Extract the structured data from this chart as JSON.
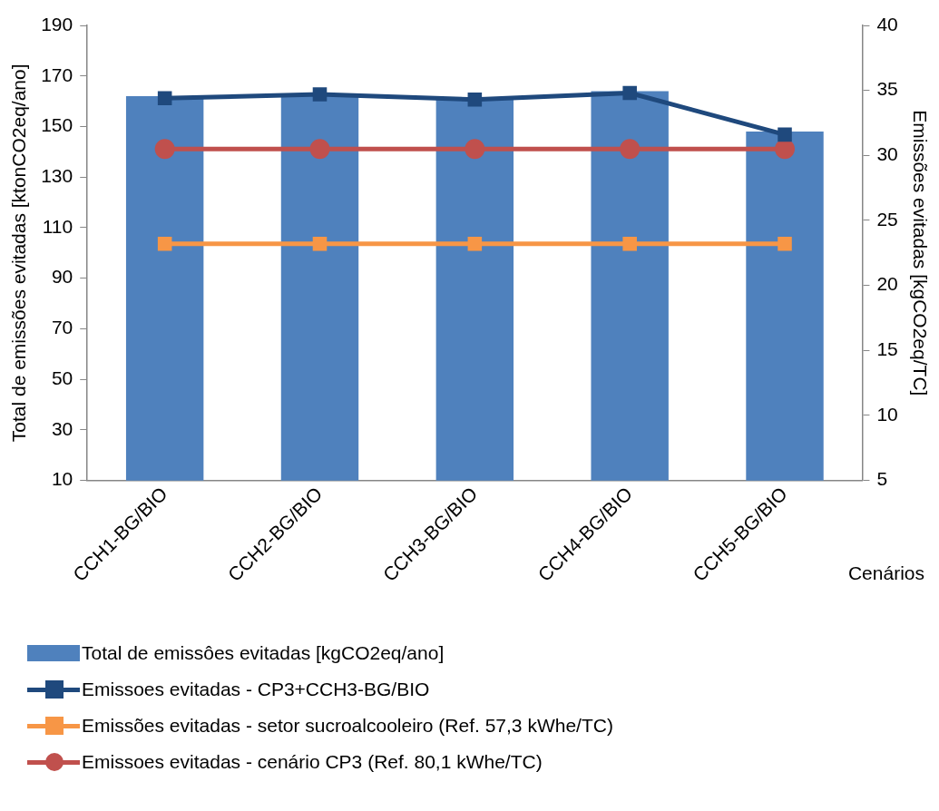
{
  "chart_data": {
    "type": "bar",
    "categories": [
      "CCH1-BG/BIO",
      "CCH2-BG/BIO",
      "CCH3-BG/BIO",
      "CCH4-BG/BIO",
      "CCH5-BG/BIO"
    ],
    "xlabel": "Cenários",
    "ylabel": "Total de emissões evitadas [ktonCO2eq/ano]",
    "y2label": "Emissões evitadas [kgCO2eq/TC]",
    "ylim": [
      10,
      190
    ],
    "yticks": [
      10,
      30,
      50,
      70,
      90,
      110,
      130,
      150,
      170,
      190
    ],
    "y2lim": [
      5,
      40
    ],
    "y2ticks": [
      5,
      10,
      15,
      20,
      25,
      30,
      35,
      40
    ],
    "grid": false,
    "legend": "bottom",
    "series": [
      {
        "name": "Total de emissôes evitadas [kgCO2eq/ano]",
        "color": "#4f81bd",
        "values": [
          162,
          163,
          161,
          164,
          148
        ]
      },
      {
        "name": "Emissoes evitadas  - CP3+CCH3-BG/BIO",
        "type": "line",
        "axis": "y2",
        "marker": "square",
        "color": "#1f497d",
        "values": [
          34.4,
          34.7,
          34.3,
          34.8,
          31.6
        ]
      },
      {
        "name": "Emissões evitadas - setor sucroalcooleiro (Ref. 57,3 kWhe/TC)",
        "type": "line",
        "axis": "y2",
        "marker": "square",
        "color": "#f79646",
        "values": [
          23.2,
          23.2,
          23.2,
          23.2,
          23.2
        ]
      },
      {
        "name": "Emissoes evitadas - cenário CP3 (Ref. 80,1 kWhe/TC)",
        "type": "line",
        "axis": "y2",
        "marker": "circle",
        "color": "#c0504d",
        "values": [
          30.5,
          30.5,
          30.5,
          30.5,
          30.5
        ]
      }
    ]
  }
}
